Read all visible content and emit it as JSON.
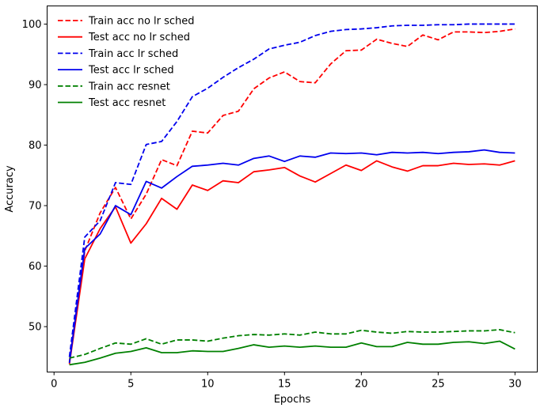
{
  "chart_data": {
    "type": "line",
    "title": "",
    "xlabel": "Epochs",
    "ylabel": "Accuracy",
    "xlim": [
      -0.45,
      31.45
    ],
    "ylim": [
      42.5,
      103.0
    ],
    "xticks": [
      0,
      5,
      10,
      15,
      20,
      25,
      30
    ],
    "yticks": [
      50,
      60,
      70,
      80,
      90,
      100
    ],
    "grid": false,
    "legend_position": "top-left",
    "x": [
      1,
      2,
      3,
      4,
      5,
      6,
      7,
      8,
      9,
      10,
      11,
      12,
      13,
      14,
      15,
      16,
      17,
      18,
      19,
      20,
      21,
      22,
      23,
      24,
      25,
      26,
      27,
      28,
      29,
      30
    ],
    "series": [
      {
        "name": "Train acc no lr sched",
        "color": "#ff0000",
        "dash": "dashed",
        "values": [
          44.2,
          62.5,
          68.8,
          73.0,
          67.8,
          71.9,
          77.6,
          76.6,
          82.3,
          82.0,
          84.9,
          85.6,
          89.3,
          91.1,
          92.1,
          90.5,
          90.3,
          93.4,
          95.6,
          95.7,
          97.5,
          96.8,
          96.3,
          98.2,
          97.4,
          98.7,
          98.7,
          98.6,
          98.8,
          99.2
        ]
      },
      {
        "name": "Test acc no lr sched",
        "color": "#ff0000",
        "dash": "solid",
        "values": [
          43.8,
          61.2,
          66.2,
          69.8,
          63.8,
          67.0,
          71.2,
          69.4,
          73.4,
          72.5,
          74.1,
          73.8,
          75.6,
          75.9,
          76.3,
          74.9,
          73.9,
          75.3,
          76.7,
          75.8,
          77.4,
          76.4,
          75.7,
          76.6,
          76.6,
          77.0,
          76.8,
          76.9,
          76.7,
          77.4
        ]
      },
      {
        "name": "Train acc lr sched",
        "color": "#0000ee",
        "dash": "dashed",
        "values": [
          45.0,
          64.8,
          67.5,
          73.8,
          73.5,
          80.1,
          80.6,
          83.9,
          88.0,
          89.4,
          91.2,
          92.8,
          94.2,
          95.9,
          96.5,
          97.0,
          98.1,
          98.8,
          99.1,
          99.2,
          99.4,
          99.7,
          99.8,
          99.8,
          99.9,
          99.9,
          100.0,
          100.0,
          100.0,
          100.0
        ]
      },
      {
        "name": "Test acc lr sched",
        "color": "#0000ee",
        "dash": "solid",
        "values": [
          44.0,
          62.9,
          65.3,
          70.0,
          68.5,
          74.0,
          72.9,
          74.8,
          76.5,
          76.7,
          77.0,
          76.7,
          77.8,
          78.2,
          77.3,
          78.2,
          78.0,
          78.7,
          78.6,
          78.7,
          78.4,
          78.8,
          78.7,
          78.8,
          78.6,
          78.8,
          78.9,
          79.2,
          78.8,
          78.7
        ]
      },
      {
        "name": "Train acc resnet",
        "color": "#008000",
        "dash": "dashed",
        "values": [
          44.8,
          45.4,
          46.4,
          47.3,
          47.1,
          48.0,
          47.1,
          47.8,
          47.8,
          47.6,
          48.1,
          48.5,
          48.7,
          48.6,
          48.8,
          48.6,
          49.1,
          48.8,
          48.8,
          49.4,
          49.1,
          48.9,
          49.2,
          49.1,
          49.1,
          49.2,
          49.3,
          49.3,
          49.5,
          49.0
        ]
      },
      {
        "name": "Test acc resnet",
        "color": "#008000",
        "dash": "solid",
        "values": [
          43.7,
          44.1,
          44.8,
          45.6,
          45.9,
          46.5,
          45.7,
          45.7,
          46.0,
          45.9,
          45.9,
          46.4,
          47.0,
          46.6,
          46.8,
          46.6,
          46.8,
          46.6,
          46.6,
          47.3,
          46.7,
          46.7,
          47.4,
          47.1,
          47.1,
          47.4,
          47.5,
          47.2,
          47.6,
          46.3
        ]
      }
    ]
  }
}
